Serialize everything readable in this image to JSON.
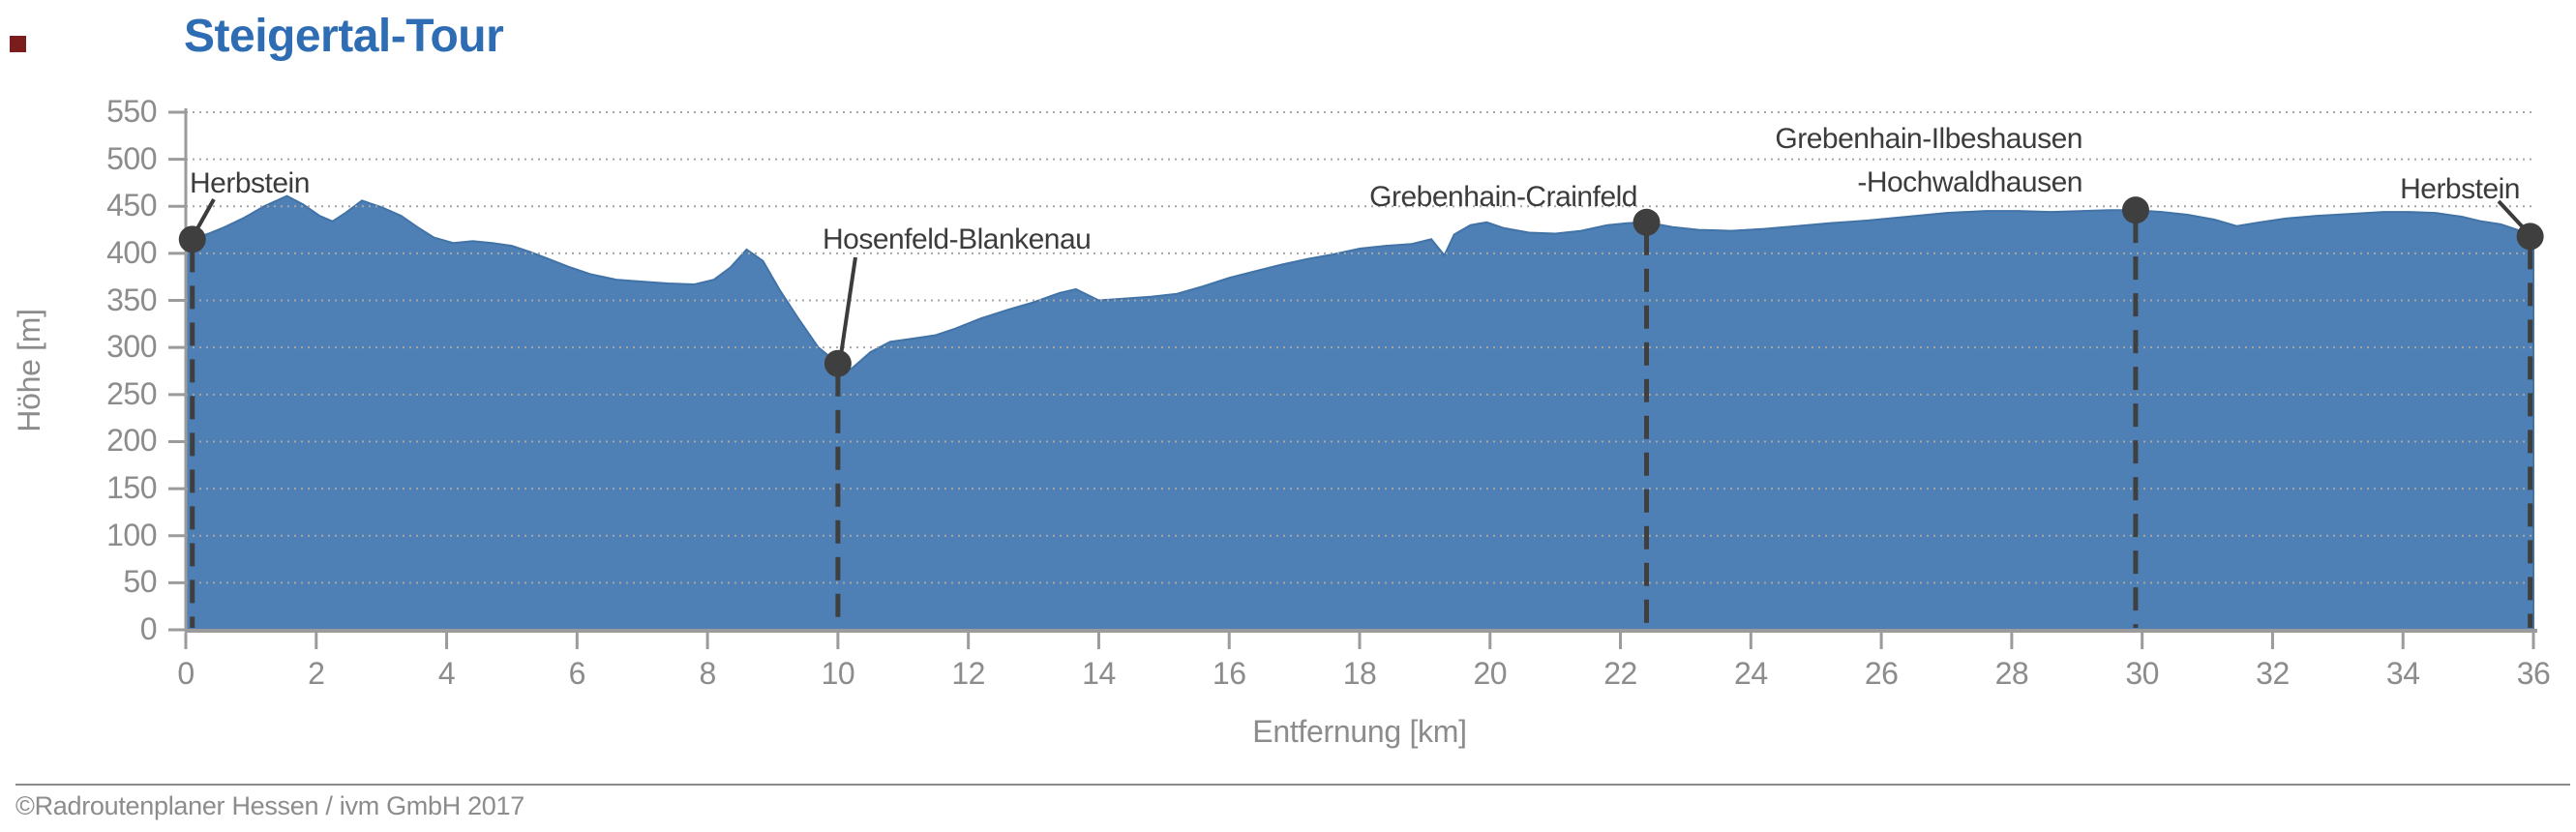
{
  "title": "Steigertal-Tour",
  "copyright": "©Radroutenplaner Hessen / ivm GmbH 2017",
  "colors": {
    "title": "#2e6db4",
    "area_fill": "#4e80b6",
    "area_stroke": "#4273a6",
    "grid": "#a6a6a6",
    "axis_line": "#9b9b9b",
    "axis_text": "#8c8c8c",
    "annotation_text": "#3c3c3c",
    "marker": "#3f3f3f",
    "red_square": "#7c1d1d"
  },
  "chart_data": {
    "type": "area",
    "title": "Steigertal-Tour",
    "xlabel": "Entfernung [km]",
    "ylabel": "Höhe [m]",
    "xlim": [
      0,
      36
    ],
    "ylim": [
      0,
      550
    ],
    "x_ticks": [
      0,
      2,
      4,
      6,
      8,
      10,
      12,
      14,
      16,
      18,
      20,
      22,
      24,
      26,
      28,
      30,
      32,
      34,
      36
    ],
    "y_ticks": [
      0,
      50,
      100,
      150,
      200,
      250,
      300,
      350,
      400,
      450,
      500,
      550
    ],
    "grid": "horizontal-dotted",
    "legend": "none",
    "profile": {
      "x": [
        0,
        0.1,
        0.35,
        0.6,
        0.9,
        1.2,
        1.55,
        1.8,
        2.05,
        2.25,
        2.45,
        2.7,
        3.0,
        3.3,
        3.55,
        3.8,
        4.1,
        4.4,
        4.7,
        5.0,
        5.3,
        5.6,
        5.9,
        6.2,
        6.6,
        7.0,
        7.4,
        7.8,
        8.1,
        8.35,
        8.6,
        8.85,
        9.1,
        9.4,
        9.7,
        10.0,
        10.2,
        10.5,
        10.8,
        11.2,
        11.5,
        11.8,
        12.2,
        12.6,
        13.0,
        13.4,
        13.65,
        14.0,
        14.4,
        14.8,
        15.2,
        15.6,
        16.0,
        16.4,
        16.8,
        17.2,
        17.6,
        18.0,
        18.4,
        18.8,
        19.1,
        19.3,
        19.45,
        19.7,
        19.95,
        20.2,
        20.6,
        21.0,
        21.4,
        21.8,
        22.1,
        22.4,
        22.8,
        23.2,
        23.7,
        24.2,
        24.7,
        25.2,
        25.8,
        26.4,
        27.0,
        27.6,
        28.1,
        28.6,
        29.1,
        29.5,
        29.9,
        30.3,
        30.7,
        31.1,
        31.45,
        31.8,
        32.2,
        32.7,
        33.2,
        33.7,
        34.1,
        34.5,
        34.9,
        35.2,
        35.5,
        35.75,
        35.95,
        36
      ],
      "y": [
        412,
        415,
        421,
        428,
        438,
        450,
        461,
        452,
        440,
        434,
        443,
        456,
        449,
        440,
        428,
        417,
        411,
        413,
        411,
        408,
        401,
        393,
        385,
        378,
        372,
        370,
        368,
        367,
        372,
        385,
        404,
        392,
        362,
        330,
        300,
        283,
        277,
        295,
        306,
        310,
        313,
        320,
        331,
        340,
        348,
        358,
        362,
        350,
        352,
        354,
        357,
        365,
        374,
        381,
        388,
        394,
        399,
        405,
        408,
        410,
        415,
        398,
        420,
        430,
        433,
        427,
        422,
        421,
        424,
        430,
        432,
        433,
        428,
        425,
        424,
        426,
        429,
        432,
        435,
        439,
        443,
        445,
        445,
        444,
        445,
        446,
        446,
        444,
        441,
        436,
        429,
        433,
        437,
        440,
        442,
        444,
        444,
        443,
        439,
        434,
        431,
        425,
        418,
        415
      ]
    },
    "waypoints": [
      {
        "label": "Herbstein",
        "km": 0.1,
        "elevation_m": 415
      },
      {
        "label": "Hosenfeld-Blankenau",
        "km": 10.0,
        "elevation_m": 283
      },
      {
        "label": "Grebenhain-Crainfeld",
        "km": 22.4,
        "elevation_m": 433
      },
      {
        "label": "Grebenhain-Ilbeshausen -Hochwaldhausen",
        "label_lines": [
          "Grebenhain-Ilbeshausen",
          "-Hochwaldhausen"
        ],
        "km": 29.9,
        "elevation_m": 446
      },
      {
        "label": "Herbstein",
        "km": 35.95,
        "elevation_m": 418
      }
    ]
  }
}
